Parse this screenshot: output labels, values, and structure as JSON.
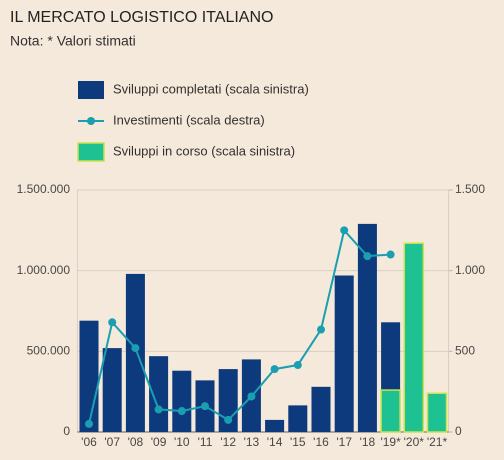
{
  "chart_data": {
    "type": "bar",
    "title": "IL MERCATO LOGISTICO ITALIANO",
    "subtitle": "Nota: * Valori stimati",
    "categories": [
      "'06",
      "'07",
      "'08",
      "'09",
      "'10",
      "'11",
      "'12",
      "'13",
      "'14",
      "'15",
      "'16",
      "'17",
      "'18",
      "'19*",
      "'20*",
      "'21*"
    ],
    "series": [
      {
        "name": "Sviluppi completati (scala sinistra)",
        "type": "bar",
        "color": "#0d3a7d",
        "values": [
          690000,
          520000,
          980000,
          470000,
          380000,
          320000,
          390000,
          450000,
          75000,
          165000,
          280000,
          970000,
          1290000,
          680000,
          null,
          null
        ]
      },
      {
        "name": "Investimenti (scala destra)",
        "type": "line",
        "axis": "y2",
        "color": "#1a9fb0",
        "values": [
          50,
          680,
          520,
          140,
          130,
          160,
          75,
          220,
          390,
          415,
          635,
          1250,
          1090,
          1100,
          null,
          null
        ]
      },
      {
        "name": "Sviluppi in corso (scala sinistra)",
        "type": "bar",
        "color": "#1ec191",
        "border": "#c9e34b",
        "values": [
          null,
          null,
          null,
          null,
          null,
          null,
          null,
          null,
          null,
          null,
          null,
          null,
          null,
          260000,
          1170000,
          240000
        ]
      }
    ],
    "ylim": [
      0,
      1500000
    ],
    "yticks": [
      0,
      {
        "value": 500000,
        "label": "500.000"
      },
      {
        "value": 1000000,
        "label": "1.000.000"
      },
      {
        "value": 1500000,
        "label": "1.500.000"
      }
    ],
    "y2lim": [
      0,
      1500
    ],
    "y2ticks": [
      0,
      500,
      {
        "value": 1000,
        "label": "1.000"
      },
      {
        "value": 1500,
        "label": "1.500"
      }
    ],
    "grid": true
  }
}
